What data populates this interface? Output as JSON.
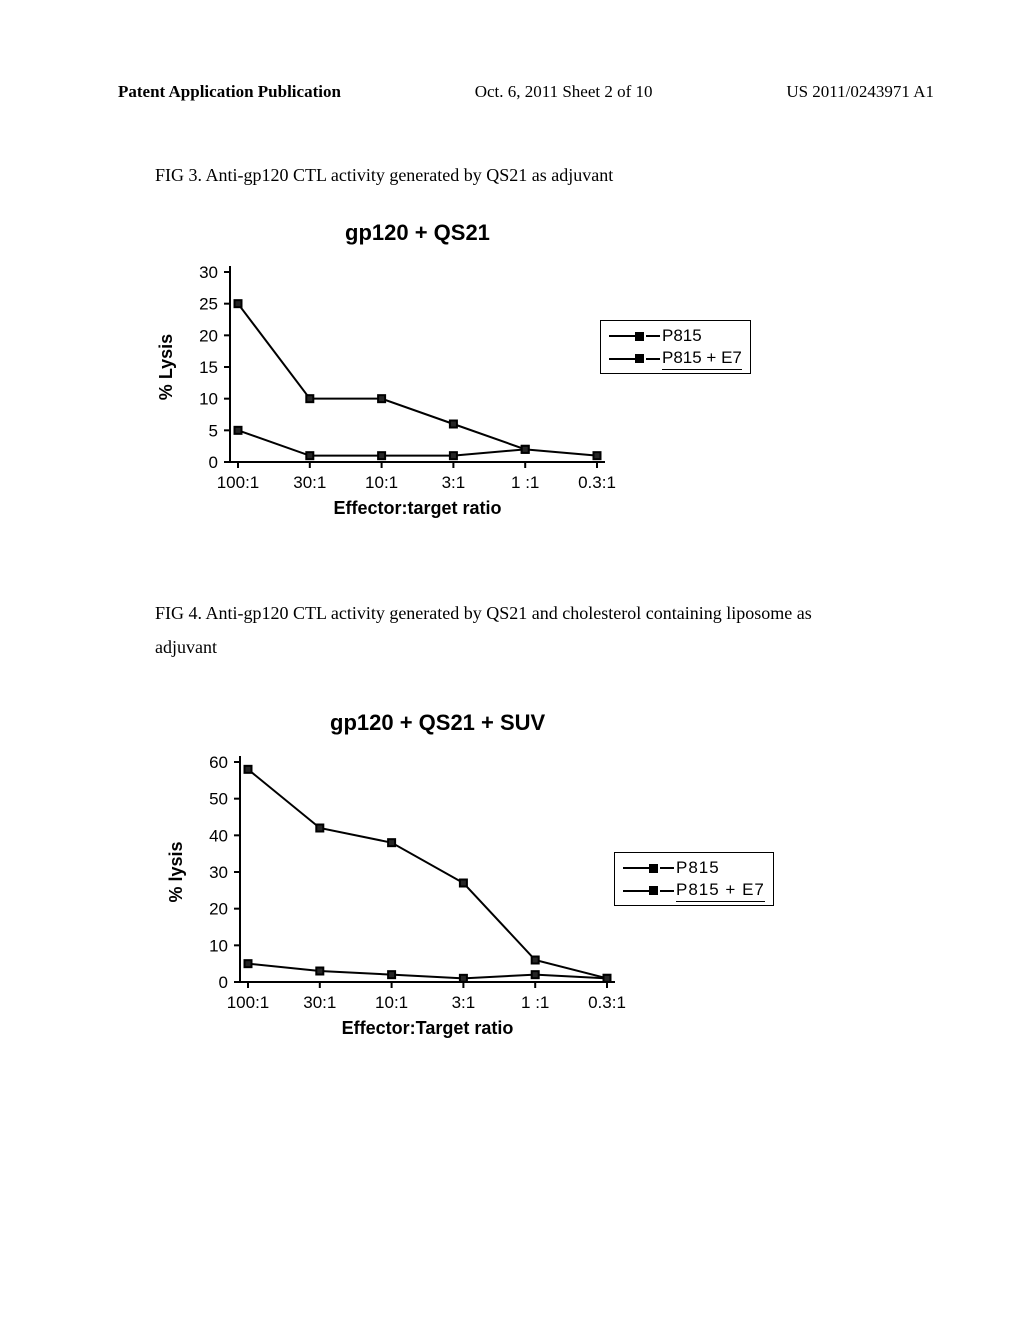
{
  "header": {
    "left": "Patent Application Publication",
    "center": "Oct. 6, 2011  Sheet 2 of 10",
    "right": "US 2011/0243971 A1"
  },
  "fig3": {
    "caption": "FIG 3. Anti-gp120 CTL activity generated by QS21 as adjuvant",
    "title": "gp120 + QS21",
    "type": "line",
    "ylabel": "% Lysis",
    "xlabel": "Effector:target ratio",
    "categories": [
      "100:1",
      "30:1",
      "10:1",
      "3:1",
      "1 :1",
      "0.3:1"
    ],
    "ylim": [
      0,
      30
    ],
    "ytick_step": 5,
    "series": [
      {
        "name": "P815",
        "values": [
          25,
          10,
          10,
          6,
          2,
          1
        ],
        "color": "#000000"
      },
      {
        "name": "P815 + E7",
        "values": [
          5,
          1,
          1,
          1,
          2,
          null
        ],
        "color": "#000000"
      }
    ],
    "legend": [
      "P815",
      "P815 + E7"
    ],
    "background_color": "#ffffff",
    "axis_color": "#000000",
    "marker": "square-filled",
    "line_width": 2,
    "marker_size": 9,
    "title_fontsize": 22,
    "label_fontsize": 18,
    "tick_fontsize": 17
  },
  "fig4": {
    "caption": "FIG 4.  Anti-gp120 CTL activity generated by QS21 and cholesterol containing liposome as adjuvant",
    "title": "gp120 + QS21 + SUV",
    "type": "line",
    "ylabel": "% lysis",
    "xlabel": "Effector:Target ratio",
    "categories": [
      "100:1",
      "30:1",
      "10:1",
      "3:1",
      "1 :1",
      "0.3:1"
    ],
    "ylim": [
      0,
      60
    ],
    "ytick_step": 10,
    "series": [
      {
        "name": "P815",
        "values": [
          58,
          42,
          38,
          27,
          6,
          1
        ],
        "color": "#000000"
      },
      {
        "name": "P815 + E7",
        "values": [
          5,
          3,
          2,
          1,
          2,
          1
        ],
        "color": "#000000"
      }
    ],
    "legend": [
      "P815",
      "P815 + E7"
    ],
    "background_color": "#ffffff",
    "axis_color": "#000000",
    "marker": "square-filled",
    "line_width": 2,
    "marker_size": 9,
    "title_fontsize": 22,
    "label_fontsize": 18,
    "tick_fontsize": 17
  }
}
